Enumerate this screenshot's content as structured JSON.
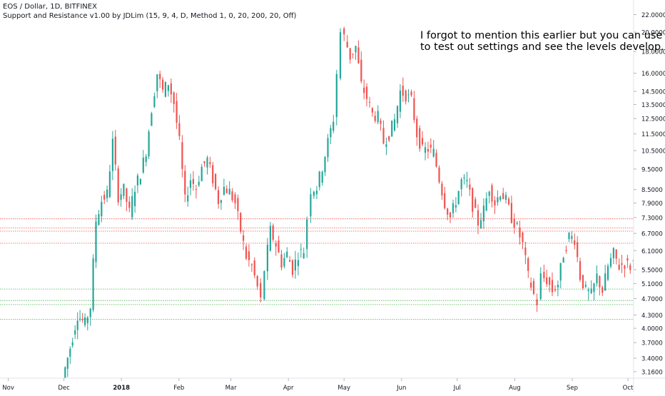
{
  "header": {
    "symbol_line": "EOS / Dollar, 1D, BITFINEX",
    "indicator_line": "Support and Resistance v1.00 by JDLim (15, 9, 4, D, Method 1, 0, 20, 200, 20, Off)"
  },
  "annotation": {
    "line1": "I forgot to mention this earlier but you can use the",
    "line2": "to test out settings and see the levels develop."
  },
  "colors": {
    "up": "#26a69a",
    "down": "#ef5350",
    "resistance": "#ef5350",
    "support": "#4caf50",
    "axis_text": "#131722",
    "axis_line": "#e0e3eb"
  },
  "chart_data": {
    "type": "candlestick",
    "y_scale": "log",
    "ylim": [
      3.05,
      23.0
    ],
    "y_ticks": [
      {
        "value": 22.0,
        "label": "22.0000"
      },
      {
        "value": 20.0,
        "label": "20.0000"
      },
      {
        "value": 18.0,
        "label": "18.0000"
      },
      {
        "value": 16.0,
        "label": "16.0000"
      },
      {
        "value": 14.5,
        "label": "14.5000"
      },
      {
        "value": 13.5,
        "label": "13.5000"
      },
      {
        "value": 12.5,
        "label": "12.5000"
      },
      {
        "value": 11.5,
        "label": "11.5000"
      },
      {
        "value": 10.5,
        "label": "10.5000"
      },
      {
        "value": 9.5,
        "label": "9.5000"
      },
      {
        "value": 8.5,
        "label": "8.5000"
      },
      {
        "value": 7.9,
        "label": "7.9000"
      },
      {
        "value": 7.3,
        "label": "7.3000"
      },
      {
        "value": 6.7,
        "label": "6.7000"
      },
      {
        "value": 6.1,
        "label": "6.1000"
      },
      {
        "value": 5.5,
        "label": "5.5000"
      },
      {
        "value": 5.1,
        "label": "5.1000"
      },
      {
        "value": 4.7,
        "label": "4.7000"
      },
      {
        "value": 4.3,
        "label": "4.3000"
      },
      {
        "value": 4.0,
        "label": "4.0000"
      },
      {
        "value": 3.7,
        "label": "3.7000"
      },
      {
        "value": 3.4,
        "label": "3.4000"
      },
      {
        "value": 3.16,
        "label": "3.1600"
      }
    ],
    "x_ticks": [
      {
        "label": "Nov",
        "bold": false
      },
      {
        "label": "Dec",
        "bold": false
      },
      {
        "label": "2018",
        "bold": true
      },
      {
        "label": "Feb",
        "bold": false
      },
      {
        "label": "Mar",
        "bold": false
      },
      {
        "label": "Apr",
        "bold": false
      },
      {
        "label": "May",
        "bold": false
      },
      {
        "label": "Jun",
        "bold": false
      },
      {
        "label": "Jul",
        "bold": false
      },
      {
        "label": "Aug",
        "bold": false
      },
      {
        "label": "Sep",
        "bold": false
      },
      {
        "label": "Oct",
        "bold": false
      }
    ],
    "resistance_levels": [
      7.25,
      6.9,
      6.78,
      6.35
    ],
    "support_levels": [
      4.95,
      4.65,
      4.55,
      4.2
    ],
    "close_series": [
      {
        "date": "2017-12-01",
        "close": 3.05
      },
      {
        "date": "2017-12-05",
        "close": 3.6
      },
      {
        "date": "2017-12-09",
        "close": 4.3
      },
      {
        "date": "2017-12-13",
        "close": 4.1
      },
      {
        "date": "2017-12-16",
        "close": 4.5
      },
      {
        "date": "2017-12-19",
        "close": 7.2
      },
      {
        "date": "2017-12-22",
        "close": 8.0
      },
      {
        "date": "2017-12-25",
        "close": 8.3
      },
      {
        "date": "2017-12-28",
        "close": 11.0
      },
      {
        "date": "2017-12-31",
        "close": 8.2
      },
      {
        "date": "2018-01-03",
        "close": 8.5
      },
      {
        "date": "2018-01-06",
        "close": 7.5
      },
      {
        "date": "2018-01-09",
        "close": 8.6
      },
      {
        "date": "2018-01-12",
        "close": 9.3
      },
      {
        "date": "2018-01-15",
        "close": 10.5
      },
      {
        "date": "2018-01-18",
        "close": 13.2
      },
      {
        "date": "2018-01-21",
        "close": 16.0
      },
      {
        "date": "2018-01-24",
        "close": 14.5
      },
      {
        "date": "2018-01-27",
        "close": 15.2
      },
      {
        "date": "2018-01-30",
        "close": 13.6
      },
      {
        "date": "2018-02-02",
        "close": 11.0
      },
      {
        "date": "2018-02-05",
        "close": 8.0
      },
      {
        "date": "2018-02-08",
        "close": 9.0
      },
      {
        "date": "2018-02-11",
        "close": 8.6
      },
      {
        "date": "2018-02-14",
        "close": 9.6
      },
      {
        "date": "2018-02-17",
        "close": 10.0
      },
      {
        "date": "2018-02-20",
        "close": 9.0
      },
      {
        "date": "2018-02-23",
        "close": 8.0
      },
      {
        "date": "2018-02-26",
        "close": 8.6
      },
      {
        "date": "2018-03-01",
        "close": 8.4
      },
      {
        "date": "2018-03-04",
        "close": 7.9
      },
      {
        "date": "2018-03-07",
        "close": 6.8
      },
      {
        "date": "2018-03-10",
        "close": 5.9
      },
      {
        "date": "2018-03-13",
        "close": 5.6
      },
      {
        "date": "2018-03-16",
        "close": 5.0
      },
      {
        "date": "2018-03-18",
        "close": 4.65
      },
      {
        "date": "2018-03-20",
        "close": 5.5
      },
      {
        "date": "2018-03-23",
        "close": 6.8
      },
      {
        "date": "2018-03-26",
        "close": 6.3
      },
      {
        "date": "2018-03-29",
        "close": 5.7
      },
      {
        "date": "2018-04-01",
        "close": 6.0
      },
      {
        "date": "2018-04-04",
        "close": 5.5
      },
      {
        "date": "2018-04-07",
        "close": 6.0
      },
      {
        "date": "2018-04-10",
        "close": 6.1
      },
      {
        "date": "2018-04-12",
        "close": 7.3
      },
      {
        "date": "2018-04-14",
        "close": 8.5
      },
      {
        "date": "2018-04-17",
        "close": 8.6
      },
      {
        "date": "2018-04-20",
        "close": 9.6
      },
      {
        "date": "2018-04-23",
        "close": 11.0
      },
      {
        "date": "2018-04-26",
        "close": 12.5
      },
      {
        "date": "2018-04-28",
        "close": 16.0
      },
      {
        "date": "2018-04-30",
        "close": 20.0
      },
      {
        "date": "2018-05-02",
        "close": 19.5
      },
      {
        "date": "2018-05-05",
        "close": 17.5
      },
      {
        "date": "2018-05-08",
        "close": 18.5
      },
      {
        "date": "2018-05-11",
        "close": 15.0
      },
      {
        "date": "2018-05-14",
        "close": 14.0
      },
      {
        "date": "2018-05-17",
        "close": 12.8
      },
      {
        "date": "2018-05-20",
        "close": 12.6
      },
      {
        "date": "2018-05-23",
        "close": 11.0
      },
      {
        "date": "2018-05-26",
        "close": 11.5
      },
      {
        "date": "2018-05-29",
        "close": 12.4
      },
      {
        "date": "2018-06-01",
        "close": 14.5
      },
      {
        "date": "2018-06-04",
        "close": 14.2
      },
      {
        "date": "2018-06-07",
        "close": 13.8
      },
      {
        "date": "2018-06-10",
        "close": 11.5
      },
      {
        "date": "2018-06-13",
        "close": 10.5
      },
      {
        "date": "2018-06-16",
        "close": 10.6
      },
      {
        "date": "2018-06-19",
        "close": 10.4
      },
      {
        "date": "2018-06-22",
        "close": 9.0
      },
      {
        "date": "2018-06-25",
        "close": 7.9
      },
      {
        "date": "2018-06-28",
        "close": 7.3
      },
      {
        "date": "2018-07-01",
        "close": 8.0
      },
      {
        "date": "2018-07-04",
        "close": 8.9
      },
      {
        "date": "2018-07-07",
        "close": 8.8
      },
      {
        "date": "2018-07-10",
        "close": 7.8
      },
      {
        "date": "2018-07-13",
        "close": 7.1
      },
      {
        "date": "2018-07-16",
        "close": 7.6
      },
      {
        "date": "2018-07-19",
        "close": 8.6
      },
      {
        "date": "2018-07-22",
        "close": 7.9
      },
      {
        "date": "2018-07-25",
        "close": 8.4
      },
      {
        "date": "2018-07-28",
        "close": 8.0
      },
      {
        "date": "2018-07-31",
        "close": 7.3
      },
      {
        "date": "2018-08-03",
        "close": 6.9
      },
      {
        "date": "2018-08-06",
        "close": 6.3
      },
      {
        "date": "2018-08-09",
        "close": 5.3
      },
      {
        "date": "2018-08-12",
        "close": 4.8
      },
      {
        "date": "2018-08-14",
        "close": 4.6
      },
      {
        "date": "2018-08-16",
        "close": 5.3
      },
      {
        "date": "2018-08-19",
        "close": 5.2
      },
      {
        "date": "2018-08-22",
        "close": 4.9
      },
      {
        "date": "2018-08-25",
        "close": 5.1
      },
      {
        "date": "2018-08-28",
        "close": 6.0
      },
      {
        "date": "2018-08-31",
        "close": 6.6
      },
      {
        "date": "2018-09-03",
        "close": 6.5
      },
      {
        "date": "2018-09-06",
        "close": 5.3
      },
      {
        "date": "2018-09-09",
        "close": 4.9
      },
      {
        "date": "2018-09-12",
        "close": 4.8
      },
      {
        "date": "2018-09-15",
        "close": 5.3
      },
      {
        "date": "2018-09-18",
        "close": 4.9
      },
      {
        "date": "2018-09-21",
        "close": 5.6
      },
      {
        "date": "2018-09-24",
        "close": 6.0
      },
      {
        "date": "2018-09-27",
        "close": 5.6
      },
      {
        "date": "2018-09-30",
        "close": 5.7
      },
      {
        "date": "2018-10-03",
        "close": 5.6
      },
      {
        "date": "2018-10-05",
        "close": 5.75
      }
    ]
  }
}
